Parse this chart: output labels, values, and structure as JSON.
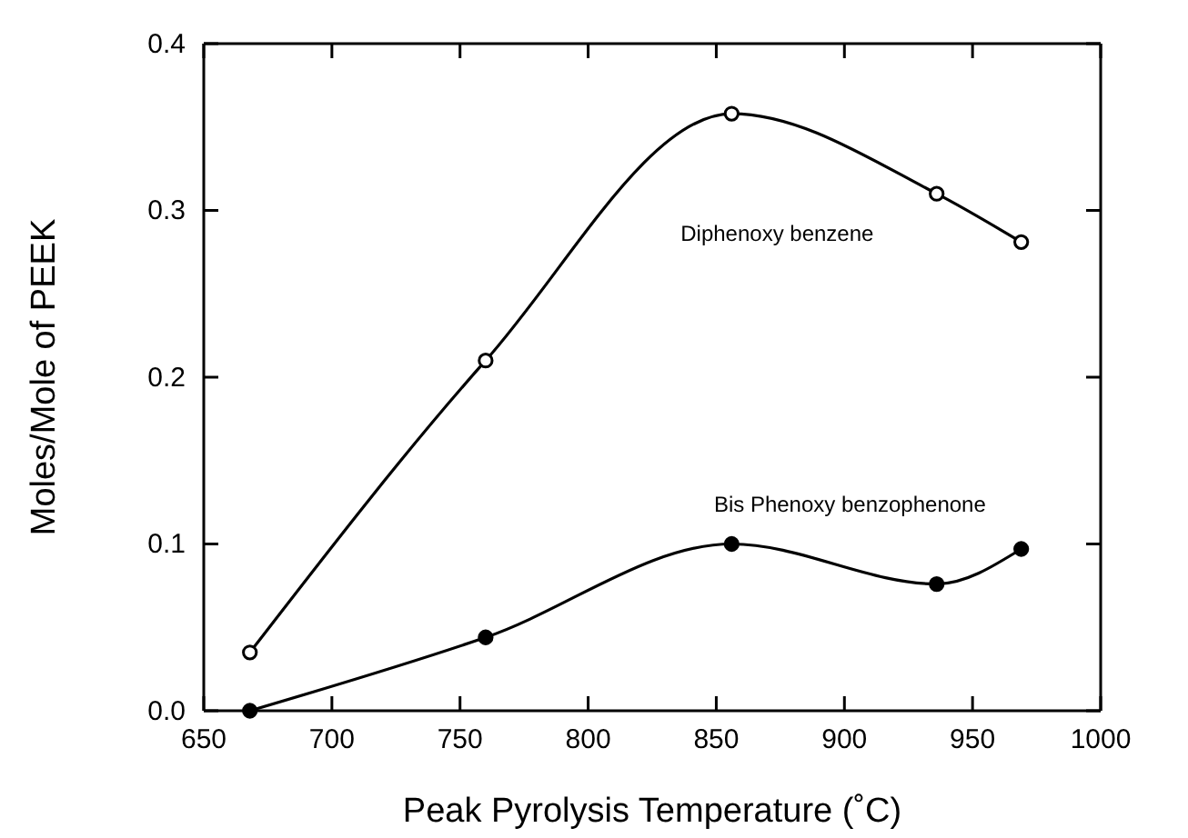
{
  "chart_data": {
    "type": "line",
    "xlabel": "Peak Pyrolysis Temperature (˚C)",
    "ylabel": "Moles/Mole of PEEK",
    "xlim": [
      650,
      1000
    ],
    "xticks": [
      650,
      700,
      750,
      800,
      850,
      900,
      950,
      1000
    ],
    "ylim": [
      0,
      0.4
    ],
    "yticks": [
      {
        "value": 0,
        "label": "0.0"
      },
      0.1,
      0.2,
      0.3,
      0.4
    ],
    "marker": "circle",
    "grid": false,
    "series": [
      {
        "name": "Diphenoxy benzene",
        "color": "#000000",
        "x": [
          668,
          760,
          856,
          936,
          969
        ],
        "values": [
          0.035,
          0.21,
          0.358,
          0.31,
          0.281
        ]
      },
      {
        "name": "Bis Phenoxy benzophenone",
        "color": "#000000",
        "x": [
          668,
          760,
          856,
          936,
          969
        ],
        "values": [
          0,
          0.044,
          0.1,
          0.076,
          0.097
        ]
      }
    ]
  }
}
